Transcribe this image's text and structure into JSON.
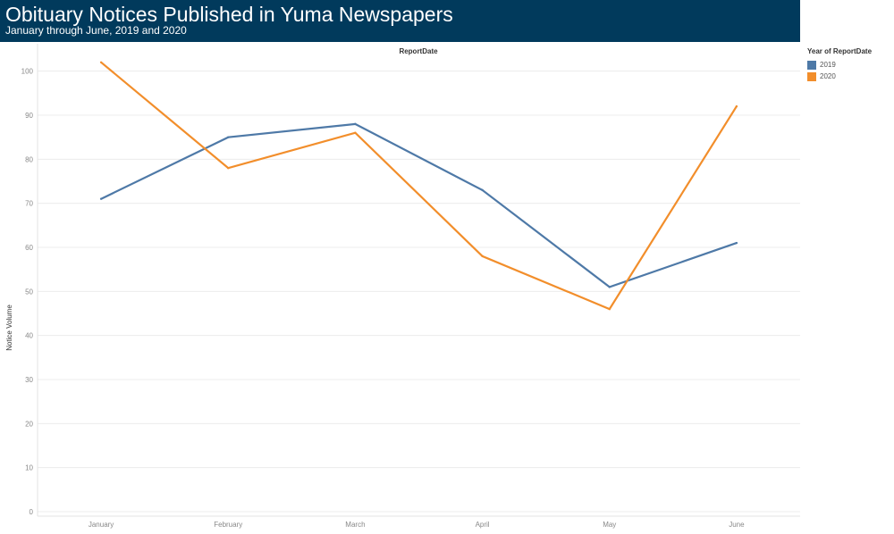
{
  "header": {
    "title": "Obituary Notices Published in Yuma Newspapers",
    "subtitle": "January through June, 2019 and 2020"
  },
  "legend": {
    "title": "Year of ReportDate",
    "items": [
      {
        "label": "2019",
        "color": "#4e79a7"
      },
      {
        "label": "2020",
        "color": "#f28e2b"
      }
    ]
  },
  "chart_data": {
    "type": "line",
    "title": "ReportDate",
    "xlabel": "",
    "ylabel": "Notice Volume",
    "categories": [
      "January",
      "February",
      "March",
      "April",
      "May",
      "June"
    ],
    "ylim": [
      0,
      105
    ],
    "yticks": [
      0,
      10,
      20,
      30,
      40,
      50,
      60,
      70,
      80,
      90,
      100
    ],
    "grid": true,
    "legend_position": "right",
    "series": [
      {
        "name": "2019",
        "color": "#4e79a7",
        "values": [
          71,
          85,
          88,
          73,
          51,
          61
        ]
      },
      {
        "name": "2020",
        "color": "#f28e2b",
        "values": [
          102,
          78,
          86,
          58,
          46,
          92
        ]
      }
    ]
  }
}
